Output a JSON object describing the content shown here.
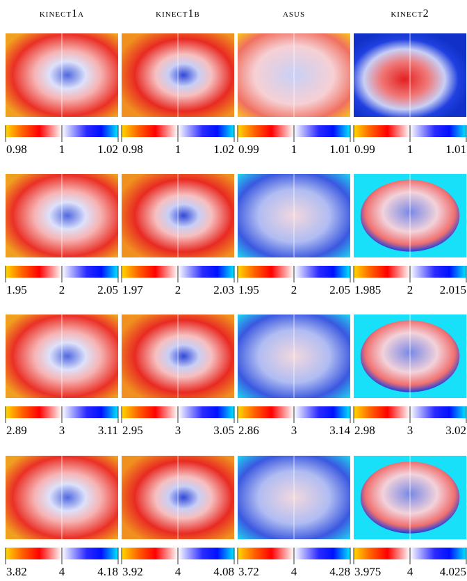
{
  "columns": [
    "kinect1a",
    "kinect1b",
    "asus",
    "kinect2"
  ],
  "rows": [
    {
      "panels": [
        {
          "lim": [
            0.98,
            1.02
          ],
          "ticks": [
            0.98,
            1,
            1.02
          ]
        },
        {
          "lim": [
            0.98,
            1.02
          ],
          "ticks": [
            0.98,
            1,
            1.02
          ]
        },
        {
          "lim": [
            0.99,
            1.01
          ],
          "ticks": [
            0.99,
            1,
            1.01
          ]
        },
        {
          "lim": [
            0.99,
            1.01
          ],
          "ticks": [
            0.99,
            1,
            1.01
          ]
        }
      ]
    },
    {
      "panels": [
        {
          "lim": [
            1.95,
            2.05
          ],
          "ticks": [
            1.95,
            2,
            2.05
          ]
        },
        {
          "lim": [
            1.97,
            2.03
          ],
          "ticks": [
            1.97,
            2,
            2.03
          ]
        },
        {
          "lim": [
            1.95,
            2.05
          ],
          "ticks": [
            1.95,
            2,
            2.05
          ]
        },
        {
          "lim": [
            1.985,
            2.015
          ],
          "ticks": [
            1.985,
            2,
            2.015
          ]
        }
      ]
    },
    {
      "panels": [
        {
          "lim": [
            2.89,
            3.11
          ],
          "ticks": [
            2.89,
            3,
            3.11
          ]
        },
        {
          "lim": [
            2.95,
            3.05
          ],
          "ticks": [
            2.95,
            3,
            3.05
          ]
        },
        {
          "lim": [
            2.86,
            3.14
          ],
          "ticks": [
            2.86,
            3,
            3.14
          ]
        },
        {
          "lim": [
            2.98,
            3.02
          ],
          "ticks": [
            2.98,
            3,
            3.02
          ]
        }
      ]
    },
    {
      "panels": [
        {
          "lim": [
            3.82,
            4.18
          ],
          "ticks": [
            3.82,
            4,
            4.18
          ]
        },
        {
          "lim": [
            3.92,
            4.08
          ],
          "ticks": [
            3.92,
            4,
            4.08
          ]
        },
        {
          "lim": [
            3.72,
            4.28
          ],
          "ticks": [
            3.72,
            4,
            4.28
          ]
        },
        {
          "lim": [
            3.975,
            4.025
          ],
          "ticks": [
            3.975,
            4,
            4.025
          ]
        }
      ]
    }
  ]
}
